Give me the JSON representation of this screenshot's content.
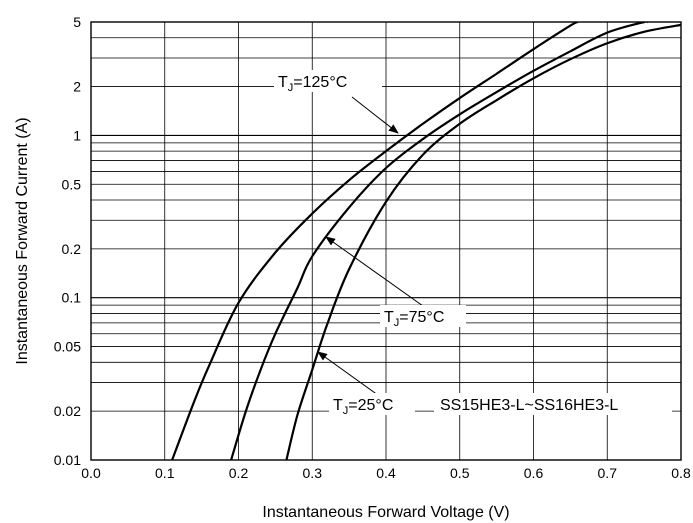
{
  "chart_data": {
    "type": "line",
    "xlabel": "Instantaneous Forward Voltage (V)",
    "ylabel": "Instantaneous Forward Current (A)",
    "xlim": [
      0.0,
      0.8
    ],
    "ylim": [
      0.01,
      5
    ],
    "y_scale": "log",
    "grid": true,
    "x_ticks": [
      "0.0",
      "0.1",
      "0.2",
      "0.3",
      "0.4",
      "0.5",
      "0.6",
      "0.7",
      "0.8"
    ],
    "y_ticks": [
      {
        "value": 0.01,
        "label": "0.01"
      },
      {
        "value": 0.02,
        "label": "0.02"
      },
      {
        "value": 0.05,
        "label": "0.05"
      },
      {
        "value": 0.1,
        "label": "0.1"
      },
      {
        "value": 0.2,
        "label": "0.2"
      },
      {
        "value": 0.5,
        "label": "0.5"
      },
      {
        "value": 1,
        "label": "1"
      },
      {
        "value": 2,
        "label": "2"
      },
      {
        "value": 5,
        "label": "5"
      }
    ],
    "series": [
      {
        "name": "TJ=125°C",
        "x": [
          0.11,
          0.14,
          0.16,
          0.2,
          0.25,
          0.3,
          0.35,
          0.4,
          0.45,
          0.5,
          0.55,
          0.6,
          0.65,
          0.66
        ],
        "y": [
          0.01,
          0.023,
          0.038,
          0.093,
          0.19,
          0.33,
          0.53,
          0.8,
          1.18,
          1.7,
          2.4,
          3.4,
          4.75,
          5.0
        ]
      },
      {
        "name": "TJ=75°C",
        "x": [
          0.19,
          0.21,
          0.23,
          0.25,
          0.28,
          0.3,
          0.35,
          0.4,
          0.45,
          0.5,
          0.55,
          0.6,
          0.65,
          0.7,
          0.75,
          0.755
        ],
        "y": [
          0.01,
          0.02,
          0.036,
          0.06,
          0.115,
          0.18,
          0.36,
          0.63,
          0.95,
          1.35,
          1.85,
          2.5,
          3.3,
          4.3,
          5.0,
          5.0
        ]
      },
      {
        "name": "TJ=25°C",
        "x": [
          0.265,
          0.28,
          0.3,
          0.32,
          0.35,
          0.4,
          0.45,
          0.5,
          0.55,
          0.6,
          0.65,
          0.7,
          0.75,
          0.8
        ],
        "y": [
          0.01,
          0.019,
          0.036,
          0.068,
          0.15,
          0.39,
          0.76,
          1.18,
          1.65,
          2.25,
          2.95,
          3.7,
          4.35,
          4.8
        ]
      }
    ],
    "annotations": [
      {
        "main": "T",
        "sub": "J",
        "rest": "=125°C"
      },
      {
        "main": "T",
        "sub": "J",
        "rest": "=75°C"
      },
      {
        "main": "T",
        "sub": "J",
        "rest": "=25°C"
      }
    ],
    "part_label": "SS15HE3-L~SS16HE3-L"
  }
}
